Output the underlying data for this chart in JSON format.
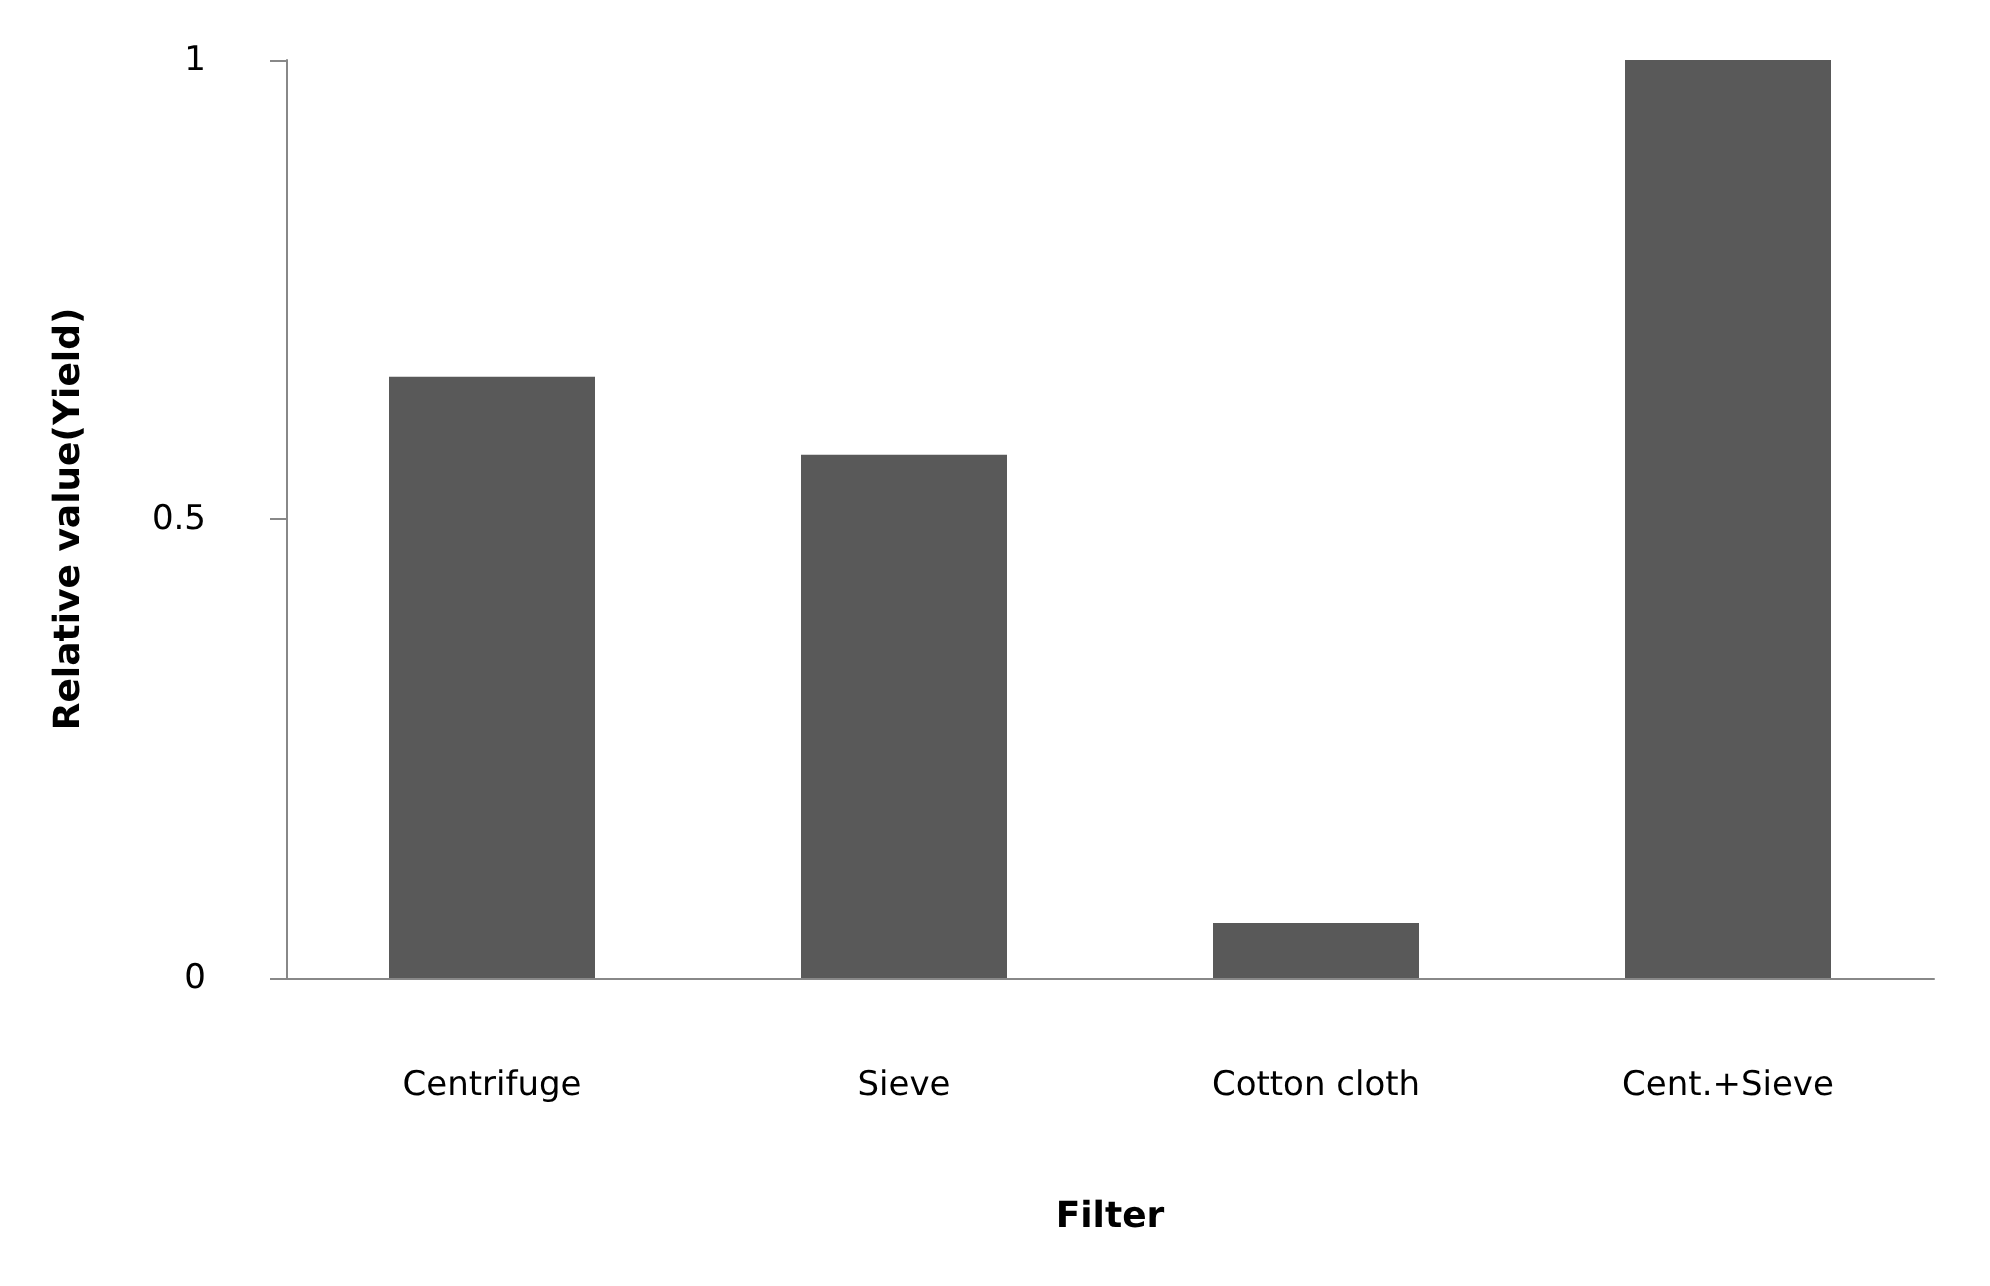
{
  "chart_data": {
    "type": "bar",
    "xlabel": "Filter",
    "ylabel": "Relative value(Yield)",
    "categories": [
      "Centrifuge",
      "Sieve",
      "Cotton cloth",
      "Cent.+Sieve"
    ],
    "values": [
      0.655,
      0.57,
      0.06,
      1.0
    ],
    "color": "#595959",
    "ylim": [
      0,
      1
    ],
    "yticks": [
      0,
      0.5,
      1
    ],
    "grid": false
  }
}
